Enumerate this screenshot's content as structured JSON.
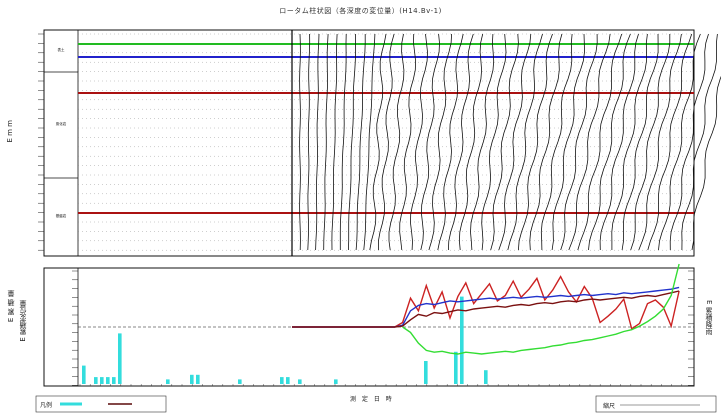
{
  "page": {
    "title": "ロータム柱状図（各深度の変位量）(H14.Bv-1)",
    "upper_ylabel": "E m m",
    "lower_ylabel_outer": "E 累 積 量",
    "lower_ylabel_inner": "E 累積変位量",
    "lower_right_label": "E 累積降雨",
    "xlabel": "測 定 日 時",
    "legend_label": "凡例",
    "scale_label": "縮尺"
  },
  "chart_data": [
    {
      "type": "line",
      "name": "upper-displacement-profile",
      "title": "",
      "depth_markers": [
        {
          "color": "#22bb22"
        },
        {
          "color": "#2222cc"
        },
        {
          "color": "#aa1111"
        },
        {
          "color": "#aa1111"
        }
      ],
      "strata": [
        {
          "label": "表土"
        },
        {
          "label": "風化岩"
        },
        {
          "label": "基盤岩"
        }
      ],
      "profile_count": 48
    },
    {
      "type": "line",
      "name": "lower-cumulative",
      "ylim": [
        -6,
        6
      ],
      "series": [
        {
          "color": "#cc2222",
          "values": [
            0,
            0,
            0,
            0,
            0,
            0,
            0,
            0,
            0,
            0,
            0,
            0,
            0,
            0,
            0.5,
            3.2,
            1.8,
            4.6,
            2.1,
            3.9,
            1.0,
            3.4,
            4.9,
            2.6,
            3.7,
            4.8,
            2.9,
            3.5,
            5.1,
            3.3,
            4.2,
            5.4,
            3.0,
            4.1,
            5.6,
            3.9,
            2.8,
            4.5,
            3.2,
            0.5,
            1.2,
            2.0,
            3.1,
            -0.2,
            0.4,
            2.6,
            3.0,
            2.2,
            0.1,
            4.0
          ]
        },
        {
          "color": "#2233cc",
          "values": [
            0,
            0,
            0,
            0,
            0,
            0,
            0,
            0,
            0,
            0,
            0,
            0,
            0,
            0,
            0.2,
            1.8,
            2.4,
            2.6,
            2.5,
            2.7,
            2.9,
            2.8,
            2.9,
            3.0,
            3.1,
            3.2,
            3.1,
            3.2,
            3.3,
            3.2,
            3.3,
            3.4,
            3.3,
            3.4,
            3.5,
            3.4,
            3.5,
            3.6,
            3.5,
            3.6,
            3.7,
            3.6,
            3.8,
            3.7,
            3.8,
            3.9,
            4.0,
            4.1,
            4.2,
            4.4
          ]
        },
        {
          "color": "#7a1010",
          "values": [
            0,
            0,
            0,
            0,
            0,
            0,
            0,
            0,
            0,
            0,
            0,
            0,
            0,
            0,
            0.1,
            0.8,
            1.4,
            1.2,
            1.6,
            1.5,
            1.7,
            1.9,
            1.8,
            2.0,
            2.1,
            2.2,
            2.3,
            2.2,
            2.4,
            2.5,
            2.4,
            2.6,
            2.7,
            2.6,
            2.8,
            2.9,
            2.8,
            3.0,
            3.1,
            3.0,
            3.1,
            3.2,
            3.3,
            3.2,
            3.4,
            3.5,
            3.4,
            3.6,
            3.8,
            4.0
          ]
        },
        {
          "color": "#33dd33",
          "values": [
            null,
            null,
            null,
            null,
            null,
            null,
            null,
            null,
            null,
            null,
            null,
            null,
            null,
            null,
            0,
            -0.6,
            -1.8,
            -2.6,
            -2.8,
            -2.7,
            -2.9,
            -3.0,
            -2.8,
            -2.9,
            -3.0,
            -2.9,
            -2.8,
            -2.7,
            -2.8,
            -2.6,
            -2.5,
            -2.4,
            -2.3,
            -2.1,
            -2.0,
            -1.8,
            -1.7,
            -1.5,
            -1.4,
            -1.2,
            -1.0,
            -0.8,
            -0.5,
            -0.3,
            0.1,
            0.6,
            1.2,
            2.0,
            3.5,
            7.0
          ]
        }
      ],
      "rain_bars": [
        8,
        0,
        3,
        3,
        3,
        3,
        22,
        0,
        0,
        0,
        0,
        0,
        0,
        0,
        2,
        0,
        0,
        0,
        4,
        4,
        0,
        0,
        0,
        0,
        0,
        0,
        2,
        0,
        0,
        0,
        0,
        0,
        0,
        3,
        3,
        0,
        2,
        0,
        0,
        0,
        0,
        0,
        2,
        0,
        0,
        0,
        0,
        0,
        0,
        0,
        0,
        0,
        0,
        0,
        0,
        0,
        0,
        10,
        0,
        0,
        0,
        0,
        14,
        38,
        0,
        0,
        0,
        6,
        0,
        0
      ]
    }
  ]
}
